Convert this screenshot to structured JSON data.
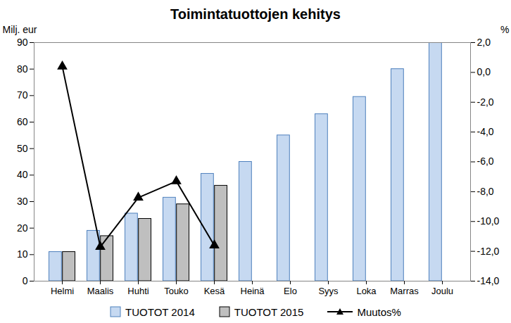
{
  "chart_data": {
    "type": "bar",
    "title": "Toimintatuottojen kehitys",
    "y_label": "Milj. eur",
    "y2_label": "%",
    "categories": [
      "Helmi",
      "Maalis",
      "Huhti",
      "Touko",
      "Kesä",
      "Heinä",
      "Elo",
      "Syys",
      "Loka",
      "Marras",
      "Joulu"
    ],
    "series": [
      {
        "name": "TUOTOT 2014",
        "type": "bar",
        "color": "#c6d9f1",
        "values": [
          11,
          19,
          25.5,
          31.5,
          40.5,
          45,
          55,
          63,
          69.5,
          80,
          90
        ]
      },
      {
        "name": "TUOTOT 2015",
        "type": "bar",
        "color": "#bfbfbf",
        "values": [
          11,
          17,
          23.5,
          29,
          36,
          null,
          null,
          null,
          null,
          null,
          null
        ]
      },
      {
        "name": "Muutos%",
        "type": "line",
        "axis": "y2",
        "color": "#000000",
        "marker": "triangle",
        "values": [
          0.4,
          -11.7,
          -8.4,
          -7.3,
          -11.6,
          null,
          null,
          null,
          null,
          null,
          null
        ]
      }
    ],
    "ylim": [
      0,
      90
    ],
    "yticks": [
      0,
      10,
      20,
      30,
      40,
      50,
      60,
      70,
      80,
      90
    ],
    "y2lim": [
      -14,
      2
    ],
    "y2ticks": [
      {
        "value": 2,
        "label": "2,0"
      },
      {
        "value": 0,
        "label": "0,0"
      },
      {
        "value": -2,
        "label": "-2,0"
      },
      {
        "value": -4,
        "label": "-4,0"
      },
      {
        "value": -6,
        "label": "-6,0"
      },
      {
        "value": -8,
        "label": "-8,0"
      },
      {
        "value": -10,
        "label": "-10,0"
      },
      {
        "value": -12,
        "label": "-12,0"
      },
      {
        "value": -14,
        "label": "-14,0"
      }
    ],
    "legend": "bottom"
  }
}
